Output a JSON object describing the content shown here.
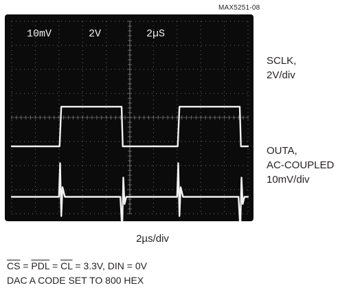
{
  "figure_id": "MAX5251-08",
  "scope": {
    "ch1_scale": "10mV",
    "ch2_scale": "2V",
    "timebase": "2µS"
  },
  "trace_labels": {
    "sclk": "SCLK,\n2V/div",
    "outa": "OUTA,\nAC-COUPLED\n10mV/div"
  },
  "time_label": "2µs/div",
  "conditions": {
    "cs": "CS",
    "pdl": "PDL",
    "cl": "CL",
    "eq_tail": " = 3.3V, DIN = 0V",
    "line2": "DAC A CODE SET TO 800 HEX"
  },
  "colors": {
    "screen": "#0b0b0b",
    "grid": "#8a8a8a",
    "trace": "#f2f2f2",
    "text": "#231f20"
  },
  "chart_data": {
    "type": "line",
    "xlabel": "2µs/div",
    "x_unit": "µs",
    "xlim": [
      0,
      20
    ],
    "grid": true,
    "divisions": {
      "x": 10,
      "y": 8
    },
    "series": [
      {
        "name": "SCLK",
        "scale": "2V/div",
        "x": [
          0,
          4.05,
          4.2,
          9.3,
          9.4,
          14.05,
          14.2,
          19.3,
          19.4,
          20
        ],
        "y": [
          0,
          0,
          3.3,
          3.3,
          0,
          0,
          3.3,
          3.3,
          0,
          0
        ]
      },
      {
        "name": "OUTA",
        "scale": "10mV/div",
        "coupling": "AC",
        "x": [
          0,
          4.0,
          4.1,
          4.2,
          4.3,
          4.5,
          9.2,
          9.35,
          9.45,
          9.55,
          9.7,
          14.0,
          14.1,
          14.2,
          14.3,
          14.5,
          19.2,
          19.35,
          19.45,
          19.55,
          19.7,
          20
        ],
        "y": [
          0,
          0,
          14,
          -8,
          4,
          0,
          0,
          -14,
          8,
          -3,
          0,
          0,
          14,
          -8,
          4,
          0,
          0,
          -14,
          8,
          -3,
          0,
          0
        ]
      }
    ]
  }
}
